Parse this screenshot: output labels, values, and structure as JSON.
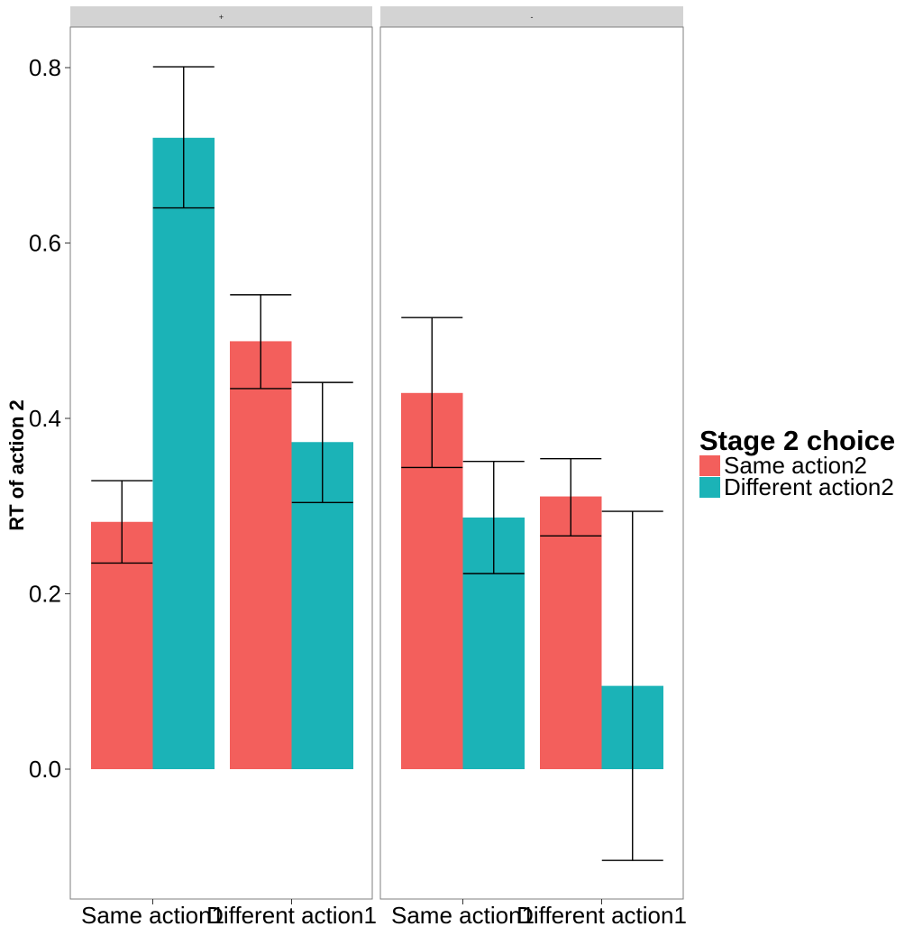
{
  "chart_data": {
    "type": "bar",
    "ylabel": "RT of action 2",
    "ylim": [
      -0.15,
      0.85
    ],
    "yticks": [
      0.0,
      0.2,
      0.4,
      0.6,
      0.8
    ],
    "ytick_labels": [
      "0.0",
      "0.2",
      "0.4",
      "0.6",
      "0.8"
    ],
    "grid": false,
    "legend": {
      "title": "Stage 2 choice",
      "placement": "right",
      "entries": [
        "Same action2",
        "Different action2"
      ]
    },
    "colors": {
      "Same action2": "#F8766D",
      "Different action2": "#00BFC4"
    },
    "series_colors": [
      "#F35F5C",
      "#1BB3B7"
    ],
    "panels": [
      {
        "facet": "+",
        "categories": [
          "Same action1",
          "Different action1"
        ],
        "series": [
          {
            "name": "Same action2",
            "values": [
              0.282,
              0.488
            ],
            "err_low": [
              0.235,
              0.434
            ],
            "err_high": [
              0.329,
              0.541
            ]
          },
          {
            "name": "Different action2",
            "values": [
              0.72,
              0.373
            ],
            "err_low": [
              0.64,
              0.304
            ],
            "err_high": [
              0.801,
              0.441
            ]
          }
        ]
      },
      {
        "facet": "-",
        "categories": [
          "Same action1",
          "Different action1"
        ],
        "series": [
          {
            "name": "Same action2",
            "values": [
              0.429,
              0.311
            ],
            "err_low": [
              0.344,
              0.266
            ],
            "err_high": [
              0.515,
              0.354
            ]
          },
          {
            "name": "Different action2",
            "values": [
              0.287,
              0.095
            ],
            "err_low": [
              0.223,
              -0.104
            ],
            "err_high": [
              0.351,
              0.294
            ]
          }
        ]
      }
    ]
  }
}
